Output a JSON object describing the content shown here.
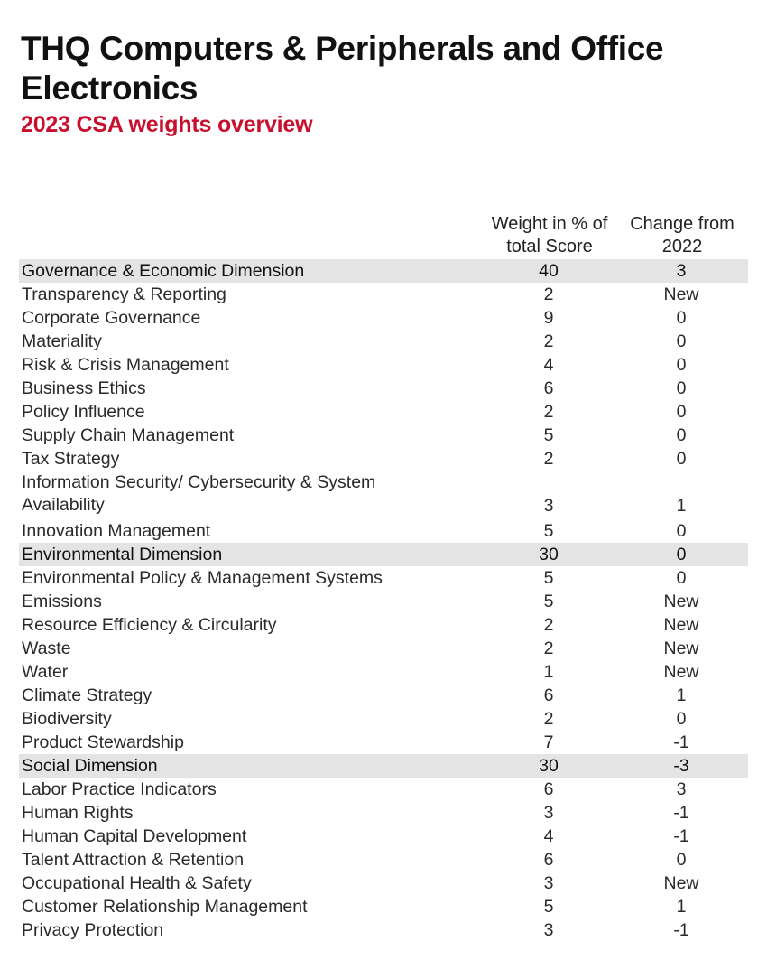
{
  "header": {
    "title": "THQ Computers & Peripherals and Office Electronics",
    "subtitle": "2023 CSA weights overview"
  },
  "columns": {
    "weight_line1": "Weight in % of",
    "weight_line2": "total Score",
    "change_line1": "Change from",
    "change_line2": "2022"
  },
  "rows": [
    {
      "name": "Governance & Economic Dimension",
      "weight": "40",
      "change": "3"
    },
    {
      "name": "Transparency & Reporting",
      "weight": "2",
      "change": "New"
    },
    {
      "name": "Corporate Governance",
      "weight": "9",
      "change": "0"
    },
    {
      "name": "Materiality",
      "weight": "2",
      "change": "0"
    },
    {
      "name": "Risk & Crisis Management",
      "weight": "4",
      "change": "0"
    },
    {
      "name": "Business Ethics",
      "weight": "6",
      "change": "0"
    },
    {
      "name": "Policy Influence",
      "weight": "2",
      "change": "0"
    },
    {
      "name": "Supply Chain Management",
      "weight": "5",
      "change": "0"
    },
    {
      "name": "Tax Strategy",
      "weight": "2",
      "change": "0"
    },
    {
      "name": "Information Security/ Cybersecurity & System Availability",
      "weight": "3",
      "change": "1"
    },
    {
      "name": "Innovation Management",
      "weight": "5",
      "change": "0"
    },
    {
      "name": "Environmental Dimension",
      "weight": "30",
      "change": "0"
    },
    {
      "name": "Environmental Policy & Management Systems",
      "weight": "5",
      "change": "0"
    },
    {
      "name": "Emissions",
      "weight": "5",
      "change": "New"
    },
    {
      "name": "Resource Efficiency & Circularity",
      "weight": "2",
      "change": "New"
    },
    {
      "name": "Waste",
      "weight": "2",
      "change": "New"
    },
    {
      "name": "Water",
      "weight": "1",
      "change": "New"
    },
    {
      "name": "Climate Strategy",
      "weight": "6",
      "change": "1"
    },
    {
      "name": "Biodiversity",
      "weight": "2",
      "change": "0"
    },
    {
      "name": "Product Stewardship",
      "weight": "7",
      "change": "-1"
    },
    {
      "name": "Social Dimension",
      "weight": "30",
      "change": "-3"
    },
    {
      "name": "Labor Practice Indicators",
      "weight": "6",
      "change": "3"
    },
    {
      "name": "Human Rights",
      "weight": "3",
      "change": "-1"
    },
    {
      "name": "Human Capital Development",
      "weight": "4",
      "change": "-1"
    },
    {
      "name": "Talent Attraction & Retention",
      "weight": "6",
      "change": "0"
    },
    {
      "name": "Occupational Health & Safety",
      "weight": "3",
      "change": "New"
    },
    {
      "name": "Customer Relationship Management",
      "weight": "5",
      "change": "1"
    },
    {
      "name": "Privacy Protection",
      "weight": "3",
      "change": "-1"
    }
  ]
}
